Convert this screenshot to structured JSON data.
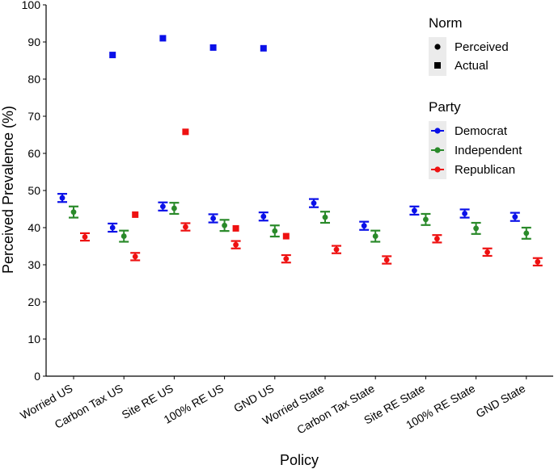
{
  "chart_data": {
    "type": "scatter",
    "xlabel": "Policy",
    "ylabel": "Perceived Prevalence (%)",
    "ylim": [
      0,
      100
    ],
    "yticks": [
      0,
      10,
      20,
      30,
      40,
      50,
      60,
      70,
      80,
      90,
      100
    ],
    "grid": false,
    "categories": [
      "Worried US",
      "Carbon Tax US",
      "Site RE US",
      "100% RE US",
      "GND US",
      "Worried State",
      "Carbon Tax State",
      "Site RE State",
      "100% RE State",
      "GND State"
    ],
    "series": [
      {
        "name": "Democrat",
        "color": "#0a10e8",
        "perceived": [
          48,
          40,
          45.7,
          42.5,
          43,
          46.6,
          40.5,
          44.6,
          43.8,
          42.9
        ],
        "error": [
          1.1,
          1.1,
          1.1,
          1.1,
          1.1,
          1.1,
          1.1,
          1.1,
          1.1,
          1.1
        ],
        "actual": [
          null,
          86.5,
          91,
          88.5,
          88.3,
          null,
          null,
          null,
          null,
          null
        ]
      },
      {
        "name": "Independent",
        "color": "#2a8a2a",
        "perceived": [
          44.2,
          37.7,
          45.2,
          40.6,
          39.1,
          42.8,
          37.7,
          42.2,
          39.8,
          38.5
        ],
        "error": [
          1.5,
          1.5,
          1.5,
          1.5,
          1.5,
          1.5,
          1.5,
          1.5,
          1.5,
          1.5
        ],
        "actual": [
          null,
          null,
          null,
          null,
          null,
          null,
          null,
          null,
          null,
          null
        ]
      },
      {
        "name": "Republican",
        "color": "#ee1111",
        "perceived": [
          37.5,
          32.2,
          40.2,
          35.4,
          31.6,
          34.1,
          31.3,
          37.0,
          33.4,
          30.8
        ],
        "error": [
          1.0,
          1.0,
          1.0,
          1.0,
          1.0,
          1.0,
          1.0,
          1.0,
          1.0,
          1.0
        ],
        "actual": [
          null,
          43.5,
          65.8,
          39.8,
          37.7,
          null,
          null,
          null,
          null,
          null
        ]
      }
    ],
    "legend": {
      "placement": "right",
      "norm_title": "Norm",
      "norm_items": [
        "Perceived",
        "Actual"
      ],
      "party_title": "Party",
      "party_items": [
        "Democrat",
        "Independent",
        "Republican"
      ]
    }
  }
}
